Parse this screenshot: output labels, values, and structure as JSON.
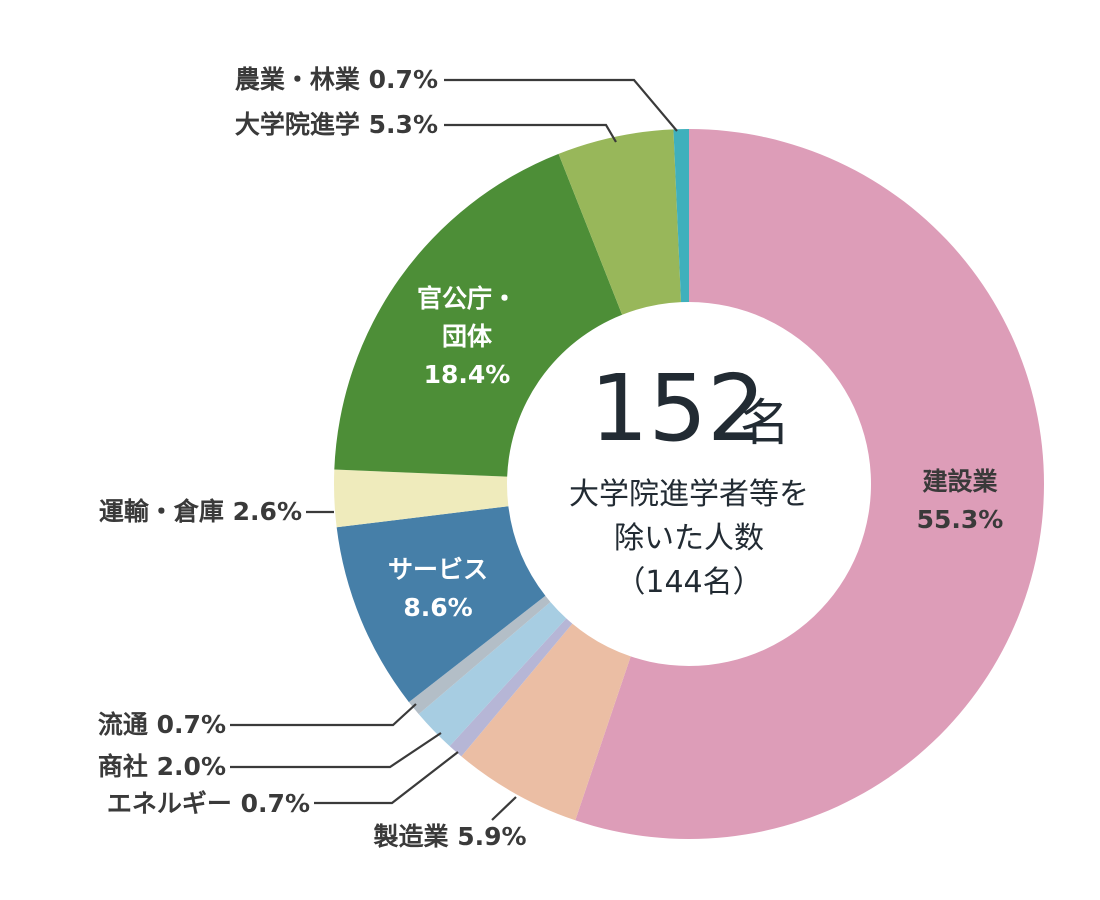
{
  "chart_data": {
    "type": "pie",
    "style": "donut",
    "center": {
      "total_value": "152",
      "total_unit": "名",
      "sub_line1": "大学院進学者等を",
      "sub_line2": "除いた人数",
      "sub_line3": "（144名）"
    },
    "slices": [
      {
        "name": "建設業",
        "value": 55.3,
        "label": "55.3%",
        "color": "#dd9db8",
        "label_color": "#3a3a3a"
      },
      {
        "name": "製造業",
        "value": 5.9,
        "label": "5.9%",
        "color": "#ebbea4"
      },
      {
        "name": "エネルギー",
        "value": 0.7,
        "label": "0.7%",
        "color": "#b6b6d6"
      },
      {
        "name": "商社",
        "value": 2.0,
        "label": "2.0%",
        "color": "#a7cde2"
      },
      {
        "name": "流通",
        "value": 0.7,
        "label": "0.7%",
        "color": "#b3bec7"
      },
      {
        "name": "サービス",
        "value": 8.6,
        "label": "8.6%",
        "color": "#467fa8",
        "label_color": "#ffffff"
      },
      {
        "name": "運輸・倉庫",
        "value": 2.6,
        "label": "2.6%",
        "color": "#efebbc"
      },
      {
        "name": "官公庁・団体",
        "name_line1": "官公庁・",
        "name_line2": "団体",
        "value": 18.4,
        "label": "18.4%",
        "color": "#4d8e37",
        "label_color": "#ffffff"
      },
      {
        "name": "大学院進学",
        "value": 5.3,
        "label": "5.3%",
        "color": "#98b75a"
      },
      {
        "name": "農業・林業",
        "value": 0.7,
        "label": "0.7%",
        "color": "#3fb0bc"
      }
    ]
  }
}
